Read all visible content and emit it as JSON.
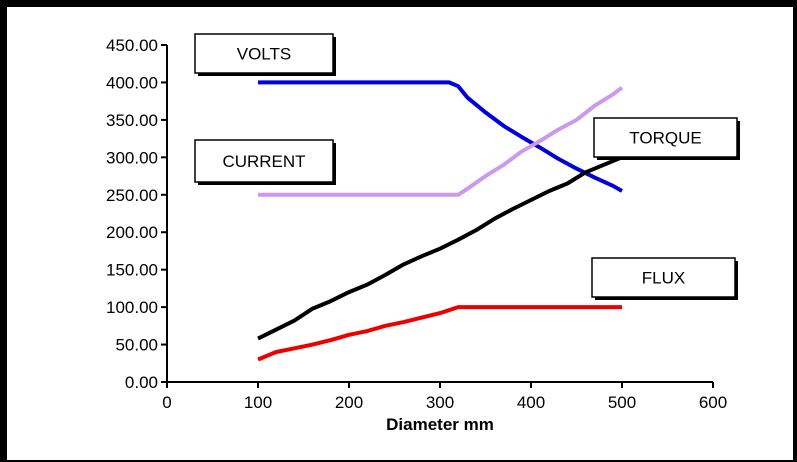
{
  "chart_data": {
    "type": "line",
    "title": "",
    "xlabel": "Diameter mm",
    "ylabel": "",
    "xlim": [
      0,
      600
    ],
    "ylim": [
      0,
      450
    ],
    "x_ticks": [
      "0",
      "100",
      "200",
      "300",
      "400",
      "500",
      "600"
    ],
    "y_ticks": [
      "0.00",
      "50.00",
      "100.00",
      "150.00",
      "200.00",
      "250.00",
      "300.00",
      "350.00",
      "400.00",
      "450.00"
    ],
    "grid": false,
    "series": [
      {
        "name": "VOLTS",
        "color": "#0000dd",
        "x": [
          100,
          150,
          200,
          250,
          300,
          310,
          320,
          330,
          350,
          370,
          390,
          410,
          430,
          450,
          470,
          490,
          500
        ],
        "y": [
          400,
          400,
          400,
          400,
          400,
          400,
          395,
          380,
          360,
          342,
          327,
          313,
          298,
          285,
          273,
          262,
          255
        ]
      },
      {
        "name": "CURRENT",
        "color": "#cc99ee",
        "x": [
          100,
          150,
          200,
          250,
          300,
          320,
          330,
          350,
          370,
          390,
          410,
          430,
          450,
          470,
          490,
          500
        ],
        "y": [
          250,
          250,
          250,
          250,
          250,
          250,
          258,
          275,
          290,
          308,
          322,
          337,
          350,
          369,
          384,
          393
        ]
      },
      {
        "name": "TORQUE",
        "color": "#000000",
        "x": [
          100,
          120,
          140,
          160,
          180,
          200,
          220,
          240,
          260,
          280,
          300,
          320,
          340,
          360,
          380,
          400,
          420,
          440,
          460,
          480,
          500
        ],
        "y": [
          58,
          70,
          82,
          98,
          108,
          120,
          130,
          143,
          157,
          168,
          178,
          190,
          203,
          218,
          231,
          243,
          255,
          265,
          280,
          290,
          300
        ]
      },
      {
        "name": "FLUX",
        "color": "#ee0000",
        "x": [
          100,
          120,
          140,
          160,
          180,
          200,
          220,
          240,
          260,
          280,
          300,
          320,
          340,
          360,
          400,
          450,
          500
        ],
        "y": [
          30,
          40,
          45,
          50,
          56,
          63,
          68,
          75,
          80,
          86,
          92,
          100,
          100,
          100,
          100,
          100,
          100
        ]
      }
    ]
  }
}
